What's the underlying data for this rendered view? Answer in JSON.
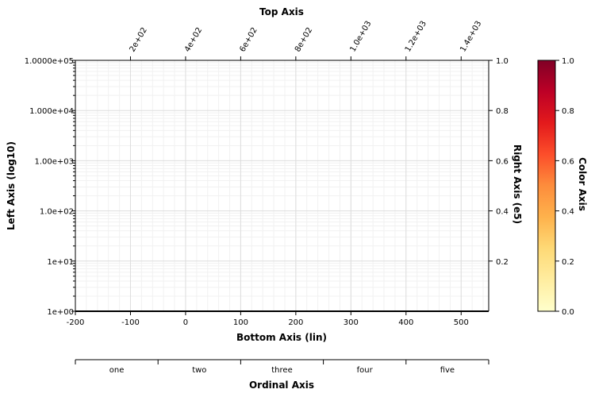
{
  "chart_data": {
    "type": "scatter",
    "series": [],
    "grid": true,
    "axes": {
      "top": {
        "title": "Top Axis",
        "scale": "linear",
        "range": [
          0,
          1500
        ],
        "ticks": [
          200,
          400,
          600,
          800,
          1000,
          1200,
          1400
        ],
        "tick_labels": [
          "2e+02",
          "4e+02",
          "6e+02",
          "8e+02",
          "1.0e+03",
          "1.2e+03",
          "1.4e+03"
        ]
      },
      "left": {
        "title": "Left Axis (log10)",
        "scale": "log10",
        "range": [
          1,
          100000
        ],
        "ticks": [
          1,
          10,
          100,
          1000,
          10000,
          100000
        ],
        "tick_labels": [
          "1e+00",
          "1e+01",
          "1.0e+02",
          "1.00e+03",
          "1.000e+04",
          "1.0000e+05"
        ]
      },
      "right": {
        "title": "Right Axis (e5)",
        "scale": "linear",
        "range": [
          0,
          1
        ],
        "ticks": [
          0.2,
          0.4,
          0.6,
          0.8,
          1.0
        ],
        "tick_labels": [
          "0.2",
          "0.4",
          "0.6",
          "0.8",
          "1.0"
        ]
      },
      "bottom": {
        "title": "Bottom Axis (lin)",
        "scale": "linear",
        "range": [
          -200,
          550
        ],
        "ticks": [
          -200,
          -100,
          0,
          100,
          200,
          300,
          400,
          500
        ],
        "tick_labels": [
          "-200",
          "-100",
          "0",
          "100",
          "200",
          "300",
          "400",
          "500"
        ]
      },
      "ordinal": {
        "title": "Ordinal Axis",
        "categories": [
          "one",
          "two",
          "three",
          "four",
          "five"
        ]
      }
    },
    "colorbar": {
      "title": "Color Axis",
      "range": [
        0,
        1
      ],
      "ticks": [
        0.0,
        0.2,
        0.4,
        0.6,
        0.8,
        1.0
      ],
      "tick_labels": [
        "0.0",
        "0.2",
        "0.4",
        "0.6",
        "0.8",
        "1.0"
      ],
      "colormap": [
        "#ffffcc",
        "#ffeda0",
        "#fed976",
        "#feb24c",
        "#fd8d3c",
        "#fc4e2a",
        "#e31a1c",
        "#bd0026",
        "#800026"
      ]
    }
  }
}
